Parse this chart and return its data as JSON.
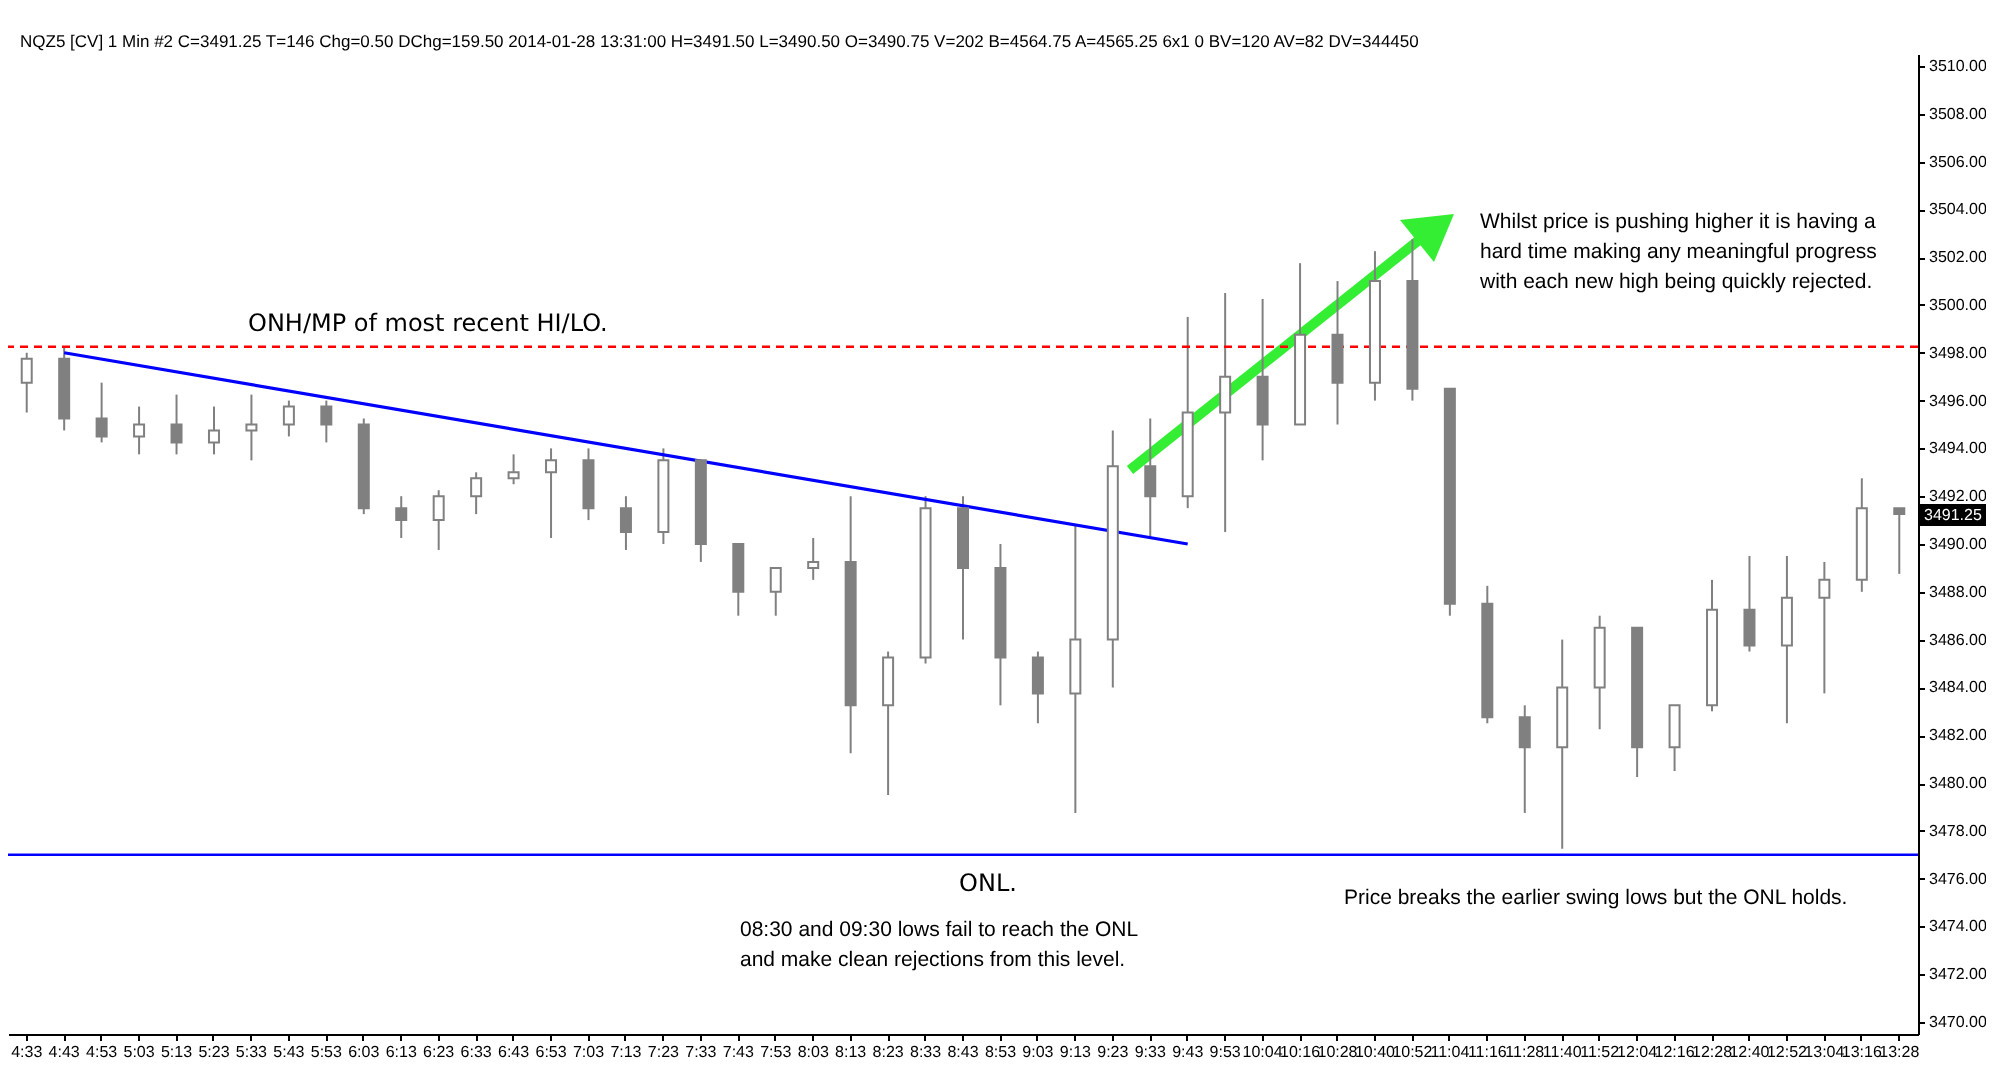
{
  "chart_data": {
    "type": "candlestick",
    "title": "NQZ5 [CV]  1 Min   #2 C=3491.25 T=146 Chg=0.50 DChg=159.50 2014-01-28 13:31:00 H=3491.50 L=3490.50 O=3490.75 V=202 B=4564.75 A=4565.25 6x1 0 BV=120 AV=82 DV=344450",
    "categories": [
      "4:33",
      "4:43",
      "4:53",
      "5:03",
      "5:13",
      "5:23",
      "5:33",
      "5:43",
      "5:53",
      "6:03",
      "6:13",
      "6:23",
      "6:33",
      "6:43",
      "6:53",
      "7:03",
      "7:13",
      "7:23",
      "7:33",
      "7:43",
      "7:53",
      "8:03",
      "8:13",
      "8:23",
      "8:33",
      "8:43",
      "8:53",
      "9:03",
      "9:13",
      "9:23",
      "9:33",
      "9:43",
      "9:53",
      "10:04",
      "10:16",
      "10:28",
      "10:40",
      "10:52",
      "11:04",
      "11:16",
      "11:28",
      "11:40",
      "11:52",
      "12:04",
      "12:16",
      "12:28",
      "12:40",
      "12:52",
      "13:04",
      "13:16",
      "13:28"
    ],
    "ohlc": [
      [
        3496.75,
        3498,
        3495.5,
        3497.75
      ],
      [
        3497.75,
        3498.25,
        3494.75,
        3495.25
      ],
      [
        3495.25,
        3496.75,
        3494.25,
        3494.5
      ],
      [
        3494.5,
        3495.75,
        3493.75,
        3495
      ],
      [
        3495,
        3496.25,
        3493.75,
        3494.25
      ],
      [
        3494.25,
        3495.75,
        3493.75,
        3494.75
      ],
      [
        3494.75,
        3496.25,
        3493.5,
        3495
      ],
      [
        3495,
        3496,
        3494.5,
        3495.75
      ],
      [
        3495.75,
        3496,
        3494.25,
        3495
      ],
      [
        3495,
        3495.25,
        3491.25,
        3491.5
      ],
      [
        3491.5,
        3492,
        3490.25,
        3491
      ],
      [
        3491,
        3492.25,
        3489.75,
        3492
      ],
      [
        3492,
        3493,
        3491.25,
        3492.75
      ],
      [
        3492.75,
        3493.75,
        3492.5,
        3493
      ],
      [
        3493,
        3494,
        3490.25,
        3493.5
      ],
      [
        3493.5,
        3494,
        3491,
        3491.5
      ],
      [
        3491.5,
        3492,
        3489.75,
        3490.5
      ],
      [
        3490.5,
        3494,
        3490,
        3493.5
      ],
      [
        3493.5,
        3493.5,
        3489.25,
        3490
      ],
      [
        3490,
        3490,
        3487,
        3488
      ],
      [
        3488,
        3489,
        3487,
        3489
      ],
      [
        3489,
        3490.25,
        3488.5,
        3489.25
      ],
      [
        3489.25,
        3492,
        3481.25,
        3483.25
      ],
      [
        3483.25,
        3485.5,
        3479.5,
        3485.25
      ],
      [
        3485.25,
        3492,
        3485,
        3491.5
      ],
      [
        3491.5,
        3492,
        3486,
        3489
      ],
      [
        3489,
        3490,
        3483.25,
        3485.25
      ],
      [
        3485.25,
        3485.5,
        3482.5,
        3483.75
      ],
      [
        3483.75,
        3490.75,
        3478.75,
        3486
      ],
      [
        3486,
        3494.75,
        3484,
        3493.25
      ],
      [
        3493.25,
        3495.25,
        3490.25,
        3492
      ],
      [
        3492,
        3499.5,
        3491.5,
        3495.5
      ],
      [
        3495.5,
        3500.5,
        3490.5,
        3497
      ],
      [
        3497,
        3500.25,
        3493.5,
        3495
      ],
      [
        3495,
        3501.75,
        3495,
        3498.75
      ],
      [
        3498.75,
        3501,
        3495,
        3496.75
      ],
      [
        3496.75,
        3502.25,
        3496,
        3501
      ],
      [
        3501,
        3502.75,
        3496,
        3496.5
      ],
      [
        3496.5,
        3496.5,
        3487,
        3487.5
      ],
      [
        3487.5,
        3488.25,
        3482.5,
        3482.75
      ],
      [
        3482.75,
        3483.25,
        3478.75,
        3481.5
      ],
      [
        3481.5,
        3486,
        3477.25,
        3484
      ],
      [
        3484,
        3487,
        3482.25,
        3486.5
      ],
      [
        3486.5,
        3486.5,
        3480.25,
        3481.5
      ],
      [
        3481.5,
        3483.25,
        3480.5,
        3483.25
      ],
      [
        3483.25,
        3488.5,
        3483,
        3487.25
      ],
      [
        3487.25,
        3489.5,
        3485.5,
        3485.75
      ],
      [
        3485.75,
        3489.5,
        3482.5,
        3487.75
      ],
      [
        3487.75,
        3489.25,
        3483.75,
        3488.5
      ],
      [
        3488.5,
        3492.75,
        3488,
        3491.5
      ],
      [
        3491.5,
        3491.5,
        3488.75,
        3491.25
      ]
    ],
    "color": "#808080",
    "series": [
      {
        "type": "line",
        "color": "#0000ff",
        "x": [
          "4:43",
          "9:43"
        ],
        "values": [
          3498,
          3490
        ]
      }
    ],
    "ylim": [
      3469.5,
      3510.5
    ],
    "yticks": [
      {
        "value": 3470,
        "label": "3470.00"
      },
      {
        "value": 3472,
        "label": "3472.00"
      },
      {
        "value": 3474,
        "label": "3474.00"
      },
      {
        "value": 3476,
        "label": "3476.00"
      },
      {
        "value": 3478,
        "label": "3478.00"
      },
      {
        "value": 3480,
        "label": "3480.00"
      },
      {
        "value": 3482,
        "label": "3482.00"
      },
      {
        "value": 3484,
        "label": "3484.00"
      },
      {
        "value": 3486,
        "label": "3486.00"
      },
      {
        "value": 3488,
        "label": "3488.00"
      },
      {
        "value": 3490,
        "label": "3490.00"
      },
      {
        "value": 3492,
        "label": "3492.00"
      },
      {
        "value": 3494,
        "label": "3494.00"
      },
      {
        "value": 3496,
        "label": "3496.00"
      },
      {
        "value": 3498,
        "label": "3498.00"
      },
      {
        "value": 3500,
        "label": "3500.00"
      },
      {
        "value": 3502,
        "label": "3502.00"
      },
      {
        "value": 3504,
        "label": "3504.00"
      },
      {
        "value": 3506,
        "label": "3506.00"
      },
      {
        "value": 3508,
        "label": "3508.00"
      },
      {
        "value": 3510,
        "label": "3510.00"
      }
    ],
    "ref_lines": [
      {
        "axis": "y",
        "value": 3498.25,
        "label": "ONH/MP of most recent HI/LO.",
        "color": "#ff0000",
        "line_style": "dashed"
      },
      {
        "axis": "y",
        "value": 3477,
        "label": "ONL.",
        "color": "#0000ff",
        "line_style": "solid"
      }
    ],
    "annotations": [
      "Whilst price is pushing higher it is having a hard time making any meaningful progress with each new high being quickly rejected.",
      "08:30 and 09:30 lows fail to reach the ONL and make clean rejections from this level.",
      "Price breaks the earlier swing lows but the ONL holds.",
      {
        "text": "3491.25",
        "x": "13:28",
        "y": 3491.25
      }
    ],
    "grid": false
  }
}
